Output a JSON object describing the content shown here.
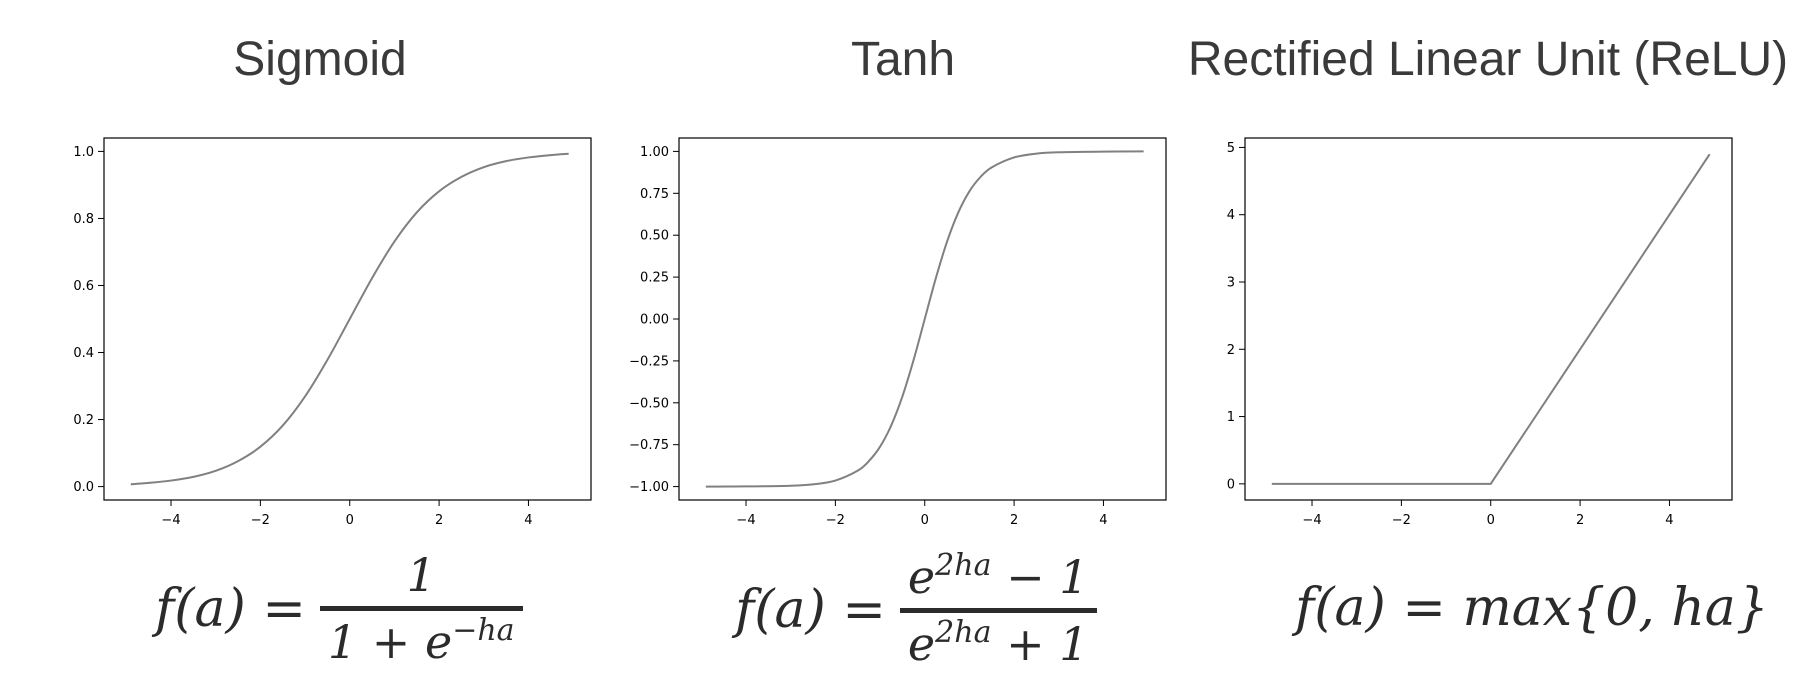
{
  "chart_data": [
    {
      "type": "line",
      "title": "Sigmoid",
      "xlim": [
        -5.5,
        5.4
      ],
      "ylim": [
        -0.04,
        1.04
      ],
      "xticks": [
        -4,
        -2,
        0,
        2,
        4
      ],
      "xtick_labels": [
        "−4",
        "−2",
        "0",
        "2",
        "4"
      ],
      "yticks": [
        0.0,
        0.2,
        0.4,
        0.6,
        0.8,
        1.0
      ],
      "ytick_labels": [
        "0.0",
        "0.2",
        "0.4",
        "0.6",
        "0.8",
        "1.0"
      ],
      "grid": false,
      "series": [
        {
          "color": "#808080",
          "x": [
            -4.9,
            -4.5,
            -4.0,
            -3.5,
            -3.0,
            -2.5,
            -2.0,
            -1.5,
            -1.0,
            -0.5,
            0.0,
            0.5,
            1.0,
            1.5,
            2.0,
            2.5,
            3.0,
            3.5,
            4.0,
            4.5,
            4.9
          ],
          "y": [
            0.007,
            0.011,
            0.018,
            0.029,
            0.047,
            0.076,
            0.119,
            0.182,
            0.269,
            0.378,
            0.5,
            0.622,
            0.731,
            0.818,
            0.881,
            0.924,
            0.953,
            0.971,
            0.982,
            0.989,
            0.993
          ]
        }
      ],
      "formula": {
        "lhs": "f(a) =",
        "num": "1",
        "den_base": "1 + e",
        "den_sup": "−ha"
      }
    },
    {
      "type": "line",
      "title": "Tanh",
      "xlim": [
        -5.5,
        5.4
      ],
      "ylim": [
        -1.08,
        1.08
      ],
      "xticks": [
        -4,
        -2,
        0,
        2,
        4
      ],
      "xtick_labels": [
        "−4",
        "−2",
        "0",
        "2",
        "4"
      ],
      "yticks": [
        -1.0,
        -0.75,
        -0.5,
        -0.25,
        0.0,
        0.25,
        0.5,
        0.75,
        1.0
      ],
      "ytick_labels": [
        "−1.00",
        "−0.75",
        "−0.50",
        "−0.25",
        "0.00",
        "0.25",
        "0.50",
        "0.75",
        "1.00"
      ],
      "grid": false,
      "series": [
        {
          "color": "#808080",
          "x": [
            -4.9,
            -4.0,
            -3.0,
            -2.5,
            -2.0,
            -1.5,
            -1.25,
            -1.0,
            -0.75,
            -0.5,
            -0.25,
            0.0,
            0.25,
            0.5,
            0.75,
            1.0,
            1.25,
            1.5,
            2.0,
            2.5,
            3.0,
            4.0,
            4.9
          ],
          "y": [
            -1.0,
            -0.999,
            -0.995,
            -0.987,
            -0.964,
            -0.905,
            -0.848,
            -0.762,
            -0.635,
            -0.462,
            -0.245,
            0.0,
            0.245,
            0.462,
            0.635,
            0.762,
            0.848,
            0.905,
            0.964,
            0.987,
            0.995,
            0.999,
            1.0
          ]
        }
      ],
      "formula": {
        "lhs": "f(a) =",
        "num_base": "e",
        "num_sup": "2ha",
        "num_tail": " − 1",
        "den_base": "e",
        "den_sup": "2ha",
        "den_tail": " + 1"
      }
    },
    {
      "type": "line",
      "title": "Rectified Linear Unit (ReLU)",
      "xlim": [
        -5.5,
        5.4
      ],
      "ylim": [
        -0.24,
        5.14
      ],
      "xticks": [
        -4,
        -2,
        0,
        2,
        4
      ],
      "xtick_labels": [
        "−4",
        "−2",
        "0",
        "2",
        "4"
      ],
      "yticks": [
        0,
        1,
        2,
        3,
        4,
        5
      ],
      "ytick_labels": [
        "0",
        "1",
        "2",
        "3",
        "4",
        "5"
      ],
      "grid": false,
      "series": [
        {
          "color": "#808080",
          "x": [
            -4.9,
            0.0,
            4.9
          ],
          "y": [
            0.0,
            0.0,
            4.9
          ]
        }
      ],
      "formula": {
        "text": "f(a) = max{0, ha}"
      }
    }
  ]
}
